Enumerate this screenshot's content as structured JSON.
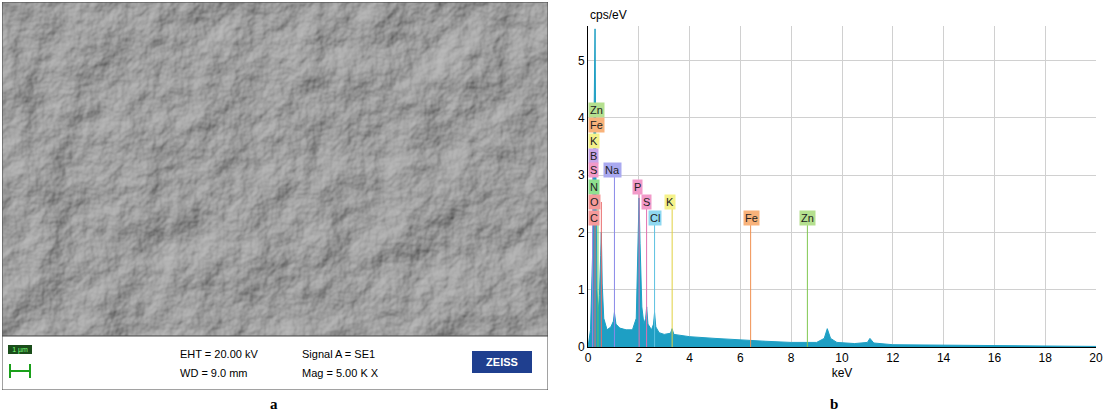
{
  "micrograph": {
    "label": "a",
    "info": [
      "EHT = 20.00 kV",
      "WD = 9.0 mm",
      "Signal A = SE1",
      "Mag =   5.00 K X"
    ],
    "brand": "ZEISS",
    "scale_bar": "1 µm"
  },
  "chart_data": {
    "label": "b",
    "type": "area",
    "y_label": "cps/eV",
    "x_label": "keV",
    "x": [
      0,
      0.1,
      0.18,
      0.24,
      0.277,
      0.31,
      0.35,
      0.4,
      0.45,
      0.5,
      0.525,
      0.56,
      0.62,
      0.75,
      0.9,
      1.0,
      1.04,
      1.1,
      1.25,
      1.5,
      1.75,
      1.9,
      1.97,
      2.01,
      2.05,
      2.12,
      2.2,
      2.27,
      2.31,
      2.36,
      2.5,
      2.58,
      2.62,
      2.67,
      2.8,
      3.0,
      3.25,
      3.31,
      3.38,
      4,
      5,
      6,
      7,
      8,
      9,
      9.3,
      9.42,
      9.55,
      9.8,
      10.5,
      11.0,
      11.1,
      11.25,
      12,
      14,
      16,
      18,
      20
    ],
    "values": [
      0,
      0.3,
      1.6,
      4.2,
      5.55,
      3.2,
      1.0,
      0.6,
      0.9,
      1.6,
      2.0,
      1.1,
      0.5,
      0.3,
      0.35,
      0.45,
      0.6,
      0.4,
      0.33,
      0.3,
      0.3,
      0.5,
      1.6,
      2.6,
      1.8,
      0.7,
      0.4,
      0.5,
      0.7,
      0.4,
      0.3,
      0.4,
      0.6,
      0.35,
      0.25,
      0.22,
      0.24,
      0.32,
      0.22,
      0.18,
      0.15,
      0.12,
      0.1,
      0.08,
      0.08,
      0.15,
      0.32,
      0.15,
      0.08,
      0.06,
      0.08,
      0.15,
      0.07,
      0.04,
      0.03,
      0.02,
      0.01,
      0.01
    ],
    "color": "#1e9fc4",
    "xlim": [
      0,
      20
    ],
    "xticks": [
      0,
      2,
      4,
      6,
      8,
      10,
      12,
      14,
      16,
      18,
      20
    ],
    "ylim": [
      0,
      5.6
    ],
    "yticks": [
      0,
      1,
      2,
      3,
      4,
      5
    ],
    "grid": true,
    "element_lines": [
      {
        "name": "B",
        "energy": 0.183,
        "color": "#b07ee0"
      },
      {
        "name": "C",
        "energy": 0.277,
        "color": "#e86a6a"
      },
      {
        "name": "N",
        "energy": 0.392,
        "color": "#5cc85c"
      },
      {
        "name": "O",
        "energy": 0.525,
        "color": "#e86a6a"
      },
      {
        "name": "Na",
        "energy": 1.041,
        "color": "#8a8ae8"
      },
      {
        "name": "P",
        "energy": 2.013,
        "color": "#e070b0"
      },
      {
        "name": "S",
        "energy": 2.307,
        "color": "#e070b0"
      },
      {
        "name": "Cl",
        "energy": 2.621,
        "color": "#5cc0e0"
      },
      {
        "name": "K",
        "energy": 3.313,
        "color": "#e0d040"
      },
      {
        "name": "Fe",
        "energy": 6.403,
        "color": "#f09050"
      },
      {
        "name": "Zn",
        "energy": 8.637,
        "color": "#80c850"
      }
    ],
    "annotations": [
      {
        "text": "Zn",
        "x": 0.0,
        "y": 4.14,
        "color": "#b5e08f"
      },
      {
        "text": "Fe",
        "x": 0.0,
        "y": 3.87,
        "color": "#f8b27a"
      },
      {
        "text": "K",
        "x": 0.0,
        "y": 3.6,
        "color": "#f5f28a"
      },
      {
        "text": "B",
        "x": 0.0,
        "y": 3.34,
        "color": "#c9a5e8"
      },
      {
        "text": "S",
        "x": 0.0,
        "y": 3.08,
        "color": "#f29ac9"
      },
      {
        "text": "Na",
        "x": 0.6,
        "y": 3.08,
        "color": "#a9a9f0"
      },
      {
        "text": "N",
        "x": 0.0,
        "y": 2.8,
        "color": "#8fe08f"
      },
      {
        "text": "O",
        "x": 0.0,
        "y": 2.53,
        "color": "#f59a9a"
      },
      {
        "text": "C",
        "x": 0.0,
        "y": 2.25,
        "color": "#f59a9a"
      },
      {
        "text": "P",
        "x": 1.75,
        "y": 2.8,
        "color": "#f29ac9"
      },
      {
        "text": "S",
        "x": 2.1,
        "y": 2.53,
        "color": "#f29ac9"
      },
      {
        "text": "Cl",
        "x": 2.35,
        "y": 2.25,
        "color": "#8fd8f0"
      },
      {
        "text": "K",
        "x": 3.0,
        "y": 2.53,
        "color": "#f5f28a"
      },
      {
        "text": "Fe",
        "x": 6.1,
        "y": 2.25,
        "color": "#f8b27a"
      },
      {
        "text": "Zn",
        "x": 8.3,
        "y": 2.25,
        "color": "#b5e08f"
      }
    ]
  }
}
